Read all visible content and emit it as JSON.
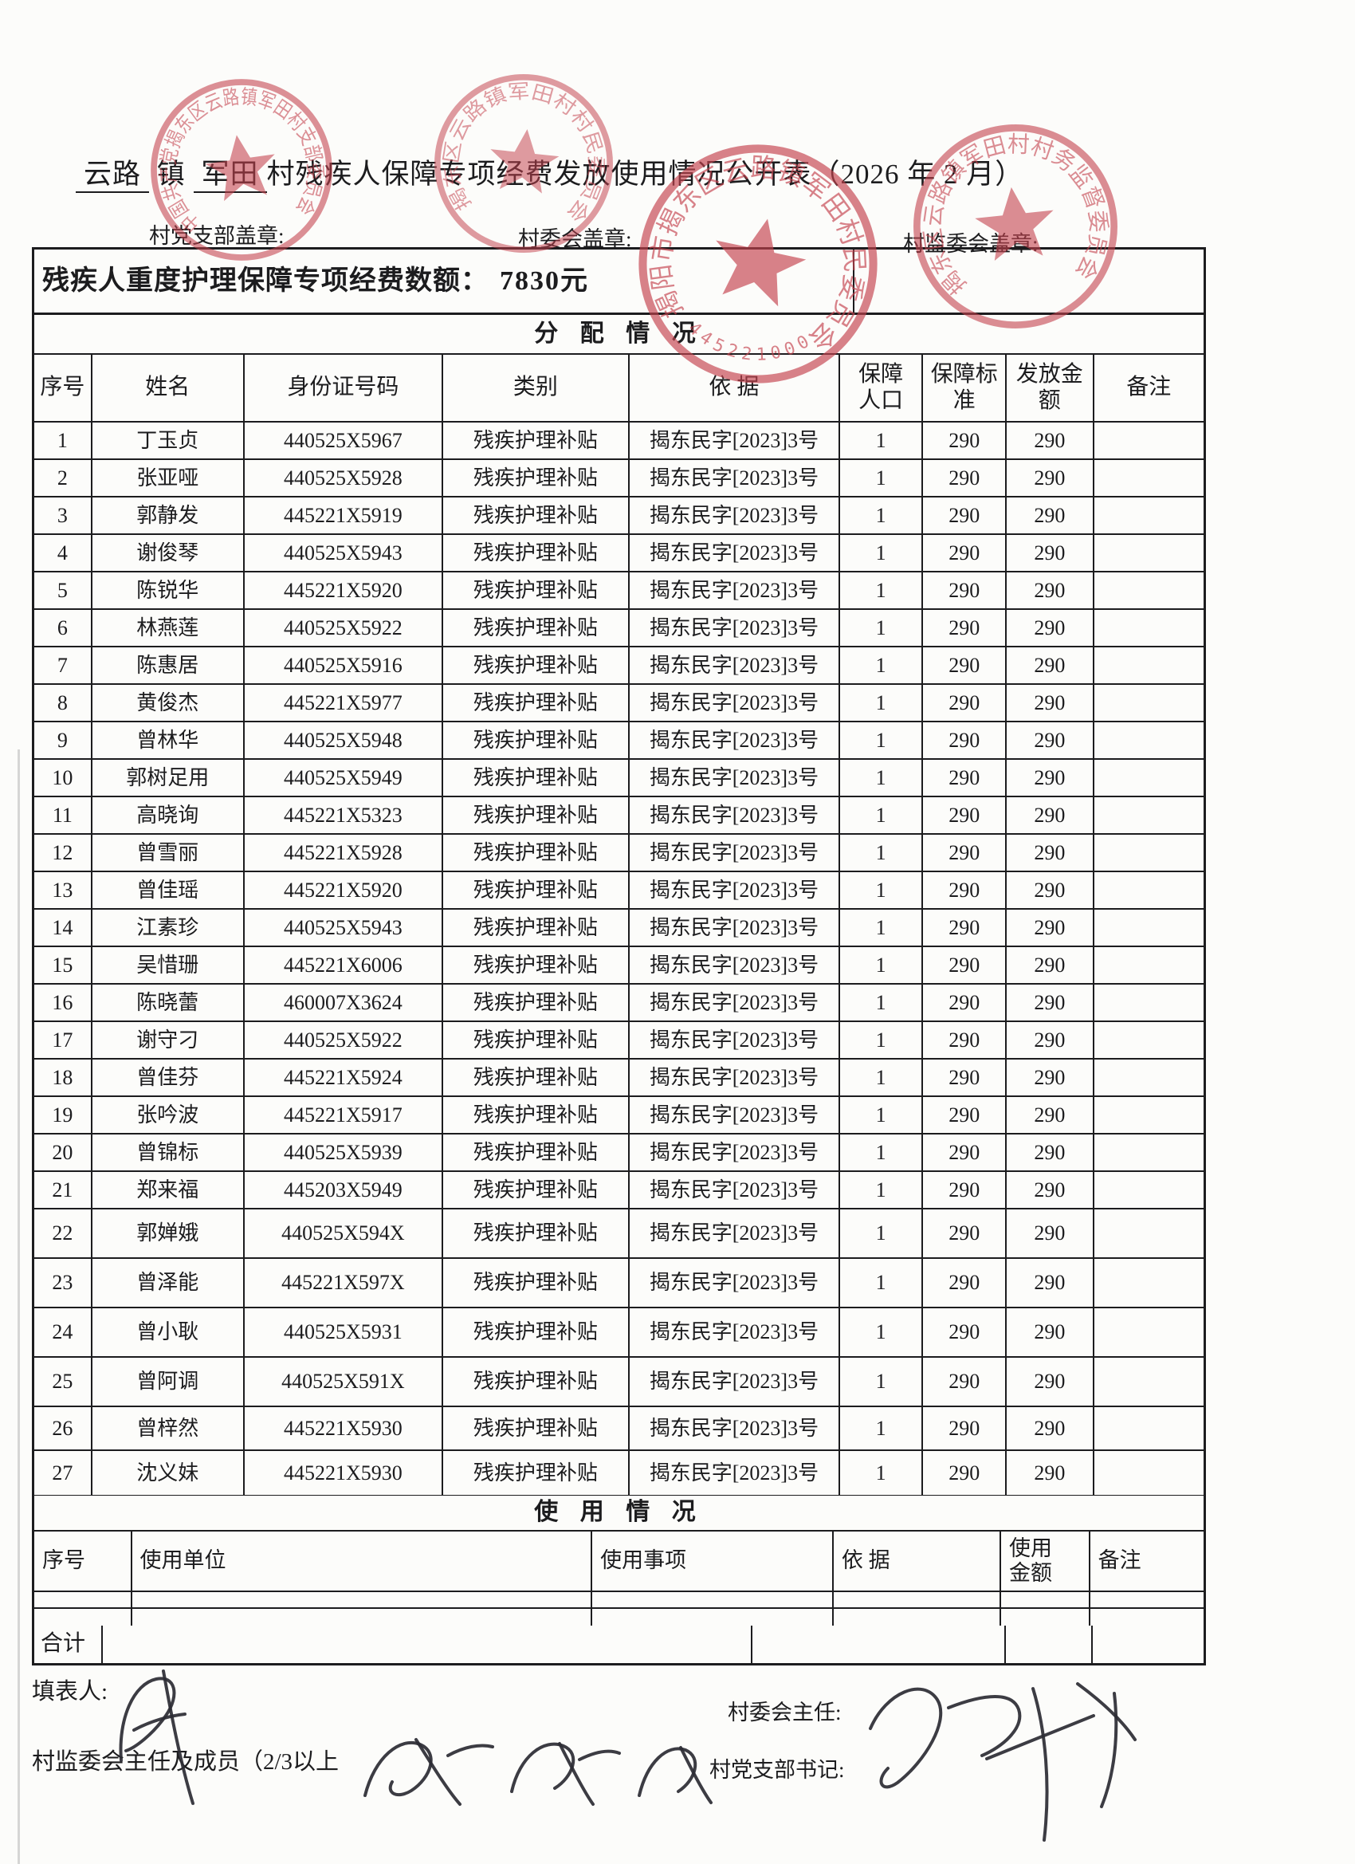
{
  "page": {
    "title_parts": [
      {
        "text": "云路",
        "underline": true
      },
      {
        "text": " 镇 ",
        "underline": false
      },
      {
        "text": "军田",
        "underline": true
      },
      {
        "text": "村残疾人保障专项经费发放使用情况公开表（2026 年 2 月）",
        "underline": false
      }
    ],
    "stamp_labels": {
      "party_branch": "村党支部盖章:",
      "village_committee": "村委会盖章:",
      "supervision_committee": "村监委会盖章:"
    }
  },
  "distribution": {
    "fund_label": "残疾人重度护理保障专项经费数额：",
    "fund_amount": "7830元",
    "section_title": "分 配 情 况",
    "headers": [
      "序号",
      "姓名",
      "身份证号码",
      "类别",
      "依 据",
      "保障\n人口",
      "保障标\n准",
      "发放金\n额",
      "备注"
    ],
    "rows": [
      [
        "1",
        "丁玉贞",
        "440525X5967",
        "残疾护理补贴",
        "揭东民字[2023]3号",
        "1",
        "290",
        "290",
        ""
      ],
      [
        "2",
        "张亚哑",
        "440525X5928",
        "残疾护理补贴",
        "揭东民字[2023]3号",
        "1",
        "290",
        "290",
        ""
      ],
      [
        "3",
        "郭静发",
        "445221X5919",
        "残疾护理补贴",
        "揭东民字[2023]3号",
        "1",
        "290",
        "290",
        ""
      ],
      [
        "4",
        "谢俊琴",
        "440525X5943",
        "残疾护理补贴",
        "揭东民字[2023]3号",
        "1",
        "290",
        "290",
        ""
      ],
      [
        "5",
        "陈锐华",
        "445221X5920",
        "残疾护理补贴",
        "揭东民字[2023]3号",
        "1",
        "290",
        "290",
        ""
      ],
      [
        "6",
        "林燕莲",
        "440525X5922",
        "残疾护理补贴",
        "揭东民字[2023]3号",
        "1",
        "290",
        "290",
        ""
      ],
      [
        "7",
        "陈惠居",
        "440525X5916",
        "残疾护理补贴",
        "揭东民字[2023]3号",
        "1",
        "290",
        "290",
        ""
      ],
      [
        "8",
        "黄俊杰",
        "445221X5977",
        "残疾护理补贴",
        "揭东民字[2023]3号",
        "1",
        "290",
        "290",
        ""
      ],
      [
        "9",
        "曾林华",
        "440525X5948",
        "残疾护理补贴",
        "揭东民字[2023]3号",
        "1",
        "290",
        "290",
        ""
      ],
      [
        "10",
        "郭树足用",
        "440525X5949",
        "残疾护理补贴",
        "揭东民字[2023]3号",
        "1",
        "290",
        "290",
        ""
      ],
      [
        "11",
        "高晓询",
        "445221X5323",
        "残疾护理补贴",
        "揭东民字[2023]3号",
        "1",
        "290",
        "290",
        ""
      ],
      [
        "12",
        "曾雪丽",
        "445221X5928",
        "残疾护理补贴",
        "揭东民字[2023]3号",
        "1",
        "290",
        "290",
        ""
      ],
      [
        "13",
        "曾佳瑶",
        "445221X5920",
        "残疾护理补贴",
        "揭东民字[2023]3号",
        "1",
        "290",
        "290",
        ""
      ],
      [
        "14",
        "江素珍",
        "440525X5943",
        "残疾护理补贴",
        "揭东民字[2023]3号",
        "1",
        "290",
        "290",
        ""
      ],
      [
        "15",
        "吴惜珊",
        "445221X6006",
        "残疾护理补贴",
        "揭东民字[2023]3号",
        "1",
        "290",
        "290",
        ""
      ],
      [
        "16",
        "陈晓蕾",
        "460007X3624",
        "残疾护理补贴",
        "揭东民字[2023]3号",
        "1",
        "290",
        "290",
        ""
      ],
      [
        "17",
        "谢守刁",
        "440525X5922",
        "残疾护理补贴",
        "揭东民字[2023]3号",
        "1",
        "290",
        "290",
        ""
      ],
      [
        "18",
        "曾佳芬",
        "445221X5924",
        "残疾护理补贴",
        "揭东民字[2023]3号",
        "1",
        "290",
        "290",
        ""
      ],
      [
        "19",
        "张吟波",
        "445221X5917",
        "残疾护理补贴",
        "揭东民字[2023]3号",
        "1",
        "290",
        "290",
        ""
      ],
      [
        "20",
        "曾锦标",
        "440525X5939",
        "残疾护理补贴",
        "揭东民字[2023]3号",
        "1",
        "290",
        "290",
        ""
      ],
      [
        "21",
        "郑来福",
        "445203X5949",
        "残疾护理补贴",
        "揭东民字[2023]3号",
        "1",
        "290",
        "290",
        ""
      ],
      [
        "22",
        "郭婵娥",
        "440525X594X",
        "残疾护理补贴",
        "揭东民字[2023]3号",
        "1",
        "290",
        "290",
        ""
      ],
      [
        "23",
        "曾泽能",
        "445221X597X",
        "残疾护理补贴",
        "揭东民字[2023]3号",
        "1",
        "290",
        "290",
        ""
      ],
      [
        "24",
        "曾小耿",
        "440525X5931",
        "残疾护理补贴",
        "揭东民字[2023]3号",
        "1",
        "290",
        "290",
        ""
      ],
      [
        "25",
        "曾阿调",
        "440525X591X",
        "残疾护理补贴",
        "揭东民字[2023]3号",
        "1",
        "290",
        "290",
        ""
      ],
      [
        "26",
        "曾梓然",
        "445221X5930",
        "残疾护理补贴",
        "揭东民字[2023]3号",
        "1",
        "290",
        "290",
        ""
      ],
      [
        "27",
        "沈义妹",
        "445221X5930",
        "残疾护理补贴",
        "揭东民字[2023]3号",
        "1",
        "290",
        "290",
        ""
      ]
    ]
  },
  "usage": {
    "section_title": "使 用 情 况",
    "headers": [
      "序号",
      "使用单位",
      "使用事项",
      "依  据",
      "使用\n金额",
      "备注"
    ],
    "empty_row_count": 2,
    "total_label": "合计"
  },
  "footer": {
    "preparer_label": "填表人:",
    "village_committee_director_label": "村委会主任:",
    "supervision_members_label": "村监委会主任及成员（2/3以上",
    "party_secretary_label": "村党支部书记:"
  },
  "stamps": {
    "party_ring_text": "中国共产党揭东区云路镇军田村支部委员会",
    "committee_ring_text": "揭东区云路镇军田村村民委员会",
    "committee_main_ring_text": "揭阳市揭东区云路镇军田村民委员会",
    "supervision_ring_text": "揭东区云路镇军田村村务监督委员会",
    "committee_code": "4452210000"
  },
  "colors": {
    "stamp_red": "#c4424e",
    "ink": "#1c1c1e",
    "paper": "#fcfcfa"
  }
}
